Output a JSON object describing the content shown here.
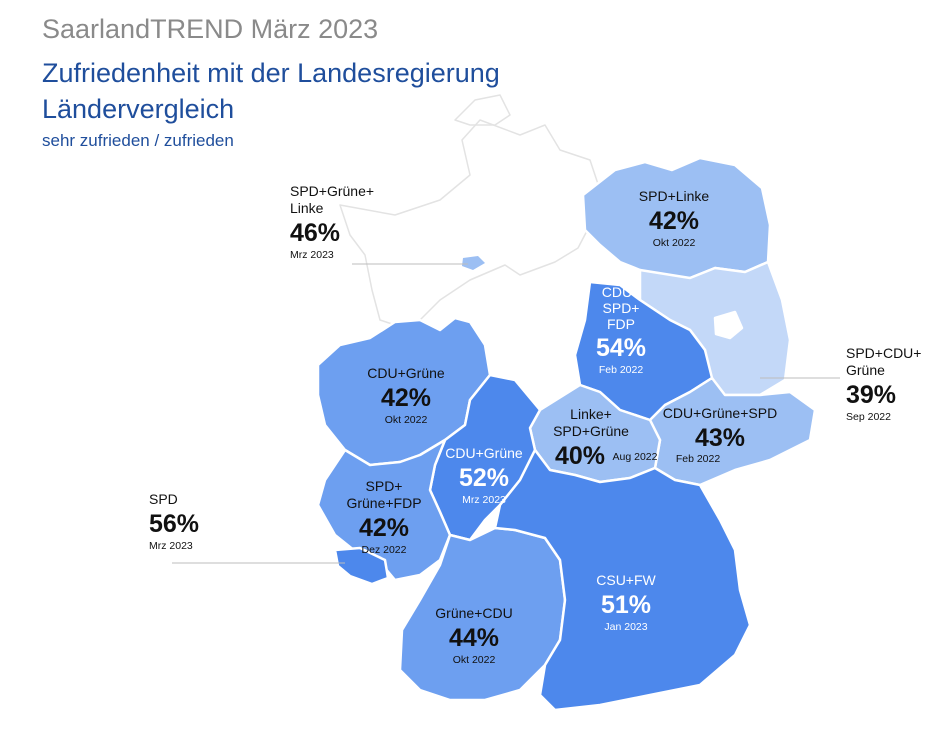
{
  "header": {
    "kicker": "SaarlandTREND März 2023",
    "title_line1": "Zufriedenheit mit der Landesregierung",
    "title_line2": "Ländervergleich",
    "subtitle": "sehr zufrieden / zufrieden"
  },
  "colors": {
    "title": "#1f4e9c",
    "kicker": "#8a8a8a",
    "very_light_blue": "#c3d8f8",
    "light_blue": "#9cbff3",
    "medium_blue": "#6d9ff0",
    "strong_blue": "#4d88ec",
    "outline": "#ffffff"
  },
  "states": [
    {
      "party": "SPD+Grüne+ Linke",
      "party_lines": [
        "SPD+Grüne+",
        "Linke"
      ],
      "percent": "46%",
      "date": "Mrz 2023",
      "value": 46,
      "color": "#ffffff"
    },
    {
      "party": "SPD+Linke",
      "party_lines": [
        "SPD+Linke"
      ],
      "percent": "42%",
      "date": "Okt 2022",
      "value": 42,
      "color": "#9cbff3"
    },
    {
      "party": "CDU+ SPD+ FDP",
      "party_lines": [
        "CDU+",
        "SPD+",
        "FDP"
      ],
      "percent": "54%",
      "date": "Feb 2022",
      "value": 54,
      "color": "#4d88ec"
    },
    {
      "party": "SPD+CDU+ Grüne",
      "party_lines": [
        "SPD+CDU+",
        "Grüne"
      ],
      "percent": "39%",
      "date": "Sep 2022",
      "value": 39,
      "color": "#c3d8f8"
    },
    {
      "party": "CDU+Grüne",
      "party_lines": [
        "CDU+Grüne"
      ],
      "percent": "42%",
      "date": "Okt 2022",
      "value": 42,
      "color": "#6d9ff0"
    },
    {
      "party": "CDU+Grüne",
      "party_lines": [
        "CDU+Grüne"
      ],
      "percent": "52%",
      "date": "Mrz 2023",
      "value": 52,
      "color": "#4d88ec"
    },
    {
      "party": "Linke+ SPD+Grüne",
      "party_lines": [
        "Linke+",
        "SPD+Grüne"
      ],
      "percent": "40%",
      "date": "Aug 2022",
      "value": 40,
      "color": "#9cbff3"
    },
    {
      "party": "CDU+Grüne+SPD",
      "party_lines": [
        "CDU+Grüne+SPD"
      ],
      "percent": "43%",
      "date": "Feb 2022",
      "value": 43,
      "color": "#9cbff3"
    },
    {
      "party": "SPD+ Grüne+FDP",
      "party_lines": [
        "SPD+",
        "Grüne+FDP"
      ],
      "percent": "42%",
      "date": "Dez 2022",
      "value": 42,
      "color": "#6d9ff0"
    },
    {
      "party": "SPD",
      "party_lines": [
        "SPD"
      ],
      "percent": "56%",
      "date": "Mrz 2023",
      "value": 56,
      "color": "#4d88ec"
    },
    {
      "party": "Grüne+CDU",
      "party_lines": [
        "Grüne+CDU"
      ],
      "percent": "44%",
      "date": "Okt 2022",
      "value": 44,
      "color": "#6d9ff0"
    },
    {
      "party": "CSU+FW",
      "party_lines": [
        "CSU+FW"
      ],
      "percent": "51%",
      "date": "Jan 2023",
      "value": 51,
      "color": "#4d88ec"
    }
  ]
}
